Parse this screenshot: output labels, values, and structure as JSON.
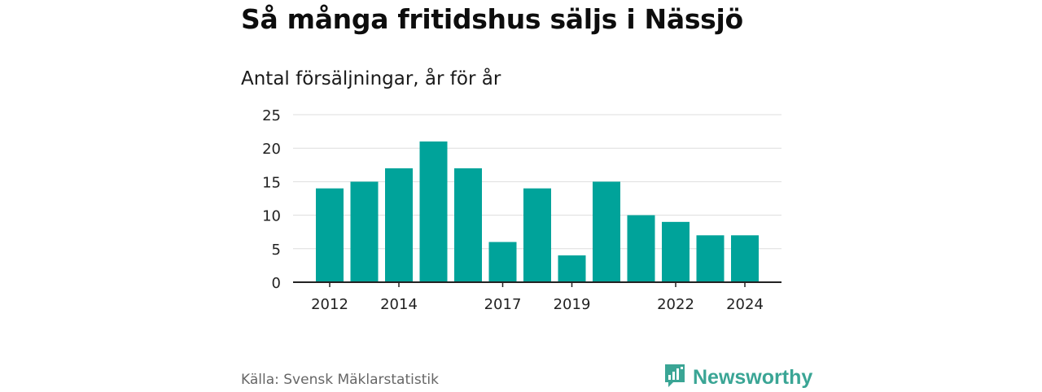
{
  "header": {
    "title": "Så många fritidshus säljs i Nässjö",
    "subtitle": "Antal försäljningar, år för år"
  },
  "footer": {
    "source": "Källa: Svensk Mäklarstatistik",
    "brand": "Newsworthy"
  },
  "colors": {
    "bar": "#00a39a",
    "grid": "#dddddd",
    "axis": "#222222",
    "brand": "#3aa595"
  },
  "icons": {
    "logo": "newsworthy-logo-icon"
  },
  "chart_data": {
    "type": "bar",
    "categories": [
      2012,
      2013,
      2014,
      2015,
      2016,
      2017,
      2018,
      2019,
      2020,
      2021,
      2022,
      2023,
      2024
    ],
    "values": [
      14,
      15,
      17,
      21,
      17,
      6,
      14,
      4,
      15,
      10,
      9,
      7,
      7
    ],
    "x_tick_labels": [
      "2012",
      "2014",
      "2017",
      "2019",
      "2022",
      "2024"
    ],
    "y_ticks": [
      0,
      5,
      10,
      15,
      20,
      25
    ],
    "ylim": [
      0,
      25
    ],
    "grid": true,
    "xlabel": "",
    "ylabel": ""
  }
}
